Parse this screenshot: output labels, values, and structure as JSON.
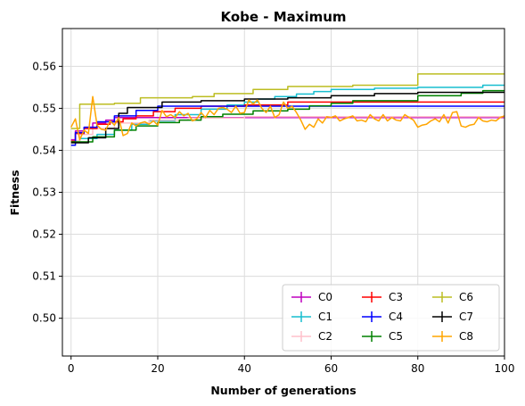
{
  "chart_data": {
    "type": "line",
    "title": "Kobe - Maximum",
    "xlabel": "Number of generations",
    "ylabel": "Fitness",
    "xlim": [
      -2,
      100
    ],
    "ylim": [
      0.491,
      0.569
    ],
    "xticks": [
      0,
      20,
      40,
      60,
      80,
      100
    ],
    "yticks": [
      0.5,
      0.51,
      0.52,
      0.53,
      0.54,
      0.55,
      0.56
    ],
    "ytick_labels": [
      "0.50",
      "0.51",
      "0.52",
      "0.53",
      "0.54",
      "0.55",
      "0.56"
    ],
    "grid": true,
    "legend": {
      "placement": "lower-right",
      "columns": 3
    },
    "series": [
      {
        "name": "C0",
        "color": "#bf00bf",
        "step": true,
        "x": [
          0,
          1,
          3,
          5,
          8,
          10,
          100
        ],
        "y": [
          0.5425,
          0.5446,
          0.5455,
          0.5465,
          0.5472,
          0.5478,
          0.5478
        ]
      },
      {
        "name": "C1",
        "color": "#17becf",
        "step": true,
        "x": [
          0,
          2,
          6,
          10,
          14,
          18,
          24,
          30,
          36,
          40,
          43,
          47,
          52,
          56,
          60,
          70,
          80,
          95,
          100
        ],
        "y": [
          0.5422,
          0.5428,
          0.5438,
          0.5448,
          0.5462,
          0.547,
          0.5485,
          0.5498,
          0.5508,
          0.5515,
          0.5522,
          0.5528,
          0.5534,
          0.554,
          0.5545,
          0.5548,
          0.555,
          0.5555,
          0.5555
        ]
      },
      {
        "name": "C2",
        "color": "#ffc0cb",
        "step": true,
        "x": [
          0,
          2,
          5,
          10,
          18,
          27,
          40,
          100
        ],
        "y": [
          0.5422,
          0.5438,
          0.5452,
          0.5465,
          0.5472,
          0.5477,
          0.548,
          0.548
        ]
      },
      {
        "name": "C3",
        "color": "#ff0000",
        "step": true,
        "x": [
          0,
          1,
          3,
          6,
          9,
          12,
          15,
          19,
          24,
          30,
          40,
          50,
          100
        ],
        "y": [
          0.5422,
          0.544,
          0.5452,
          0.5462,
          0.5468,
          0.5475,
          0.5482,
          0.5492,
          0.55,
          0.5505,
          0.5508,
          0.5515,
          0.5515
        ]
      },
      {
        "name": "C4",
        "color": "#0000ff",
        "step": true,
        "x": [
          0,
          1,
          3,
          6,
          10,
          15,
          20,
          100
        ],
        "y": [
          0.5412,
          0.5442,
          0.5455,
          0.5468,
          0.5482,
          0.5495,
          0.5505,
          0.5505
        ]
      },
      {
        "name": "C5",
        "color": "#008000",
        "step": true,
        "x": [
          0,
          5,
          10,
          15,
          20,
          25,
          30,
          35,
          42,
          50,
          55,
          60,
          65,
          80,
          90,
          95,
          100
        ],
        "y": [
          0.542,
          0.5432,
          0.5448,
          0.5458,
          0.5466,
          0.5472,
          0.548,
          0.5486,
          0.5494,
          0.5498,
          0.5506,
          0.5512,
          0.5518,
          0.553,
          0.5536,
          0.5542,
          0.5542
        ]
      },
      {
        "name": "C6",
        "color": "#bcbd22",
        "step": true,
        "x": [
          0,
          2,
          10,
          16,
          28,
          33,
          42,
          50,
          60,
          65,
          80,
          100
        ],
        "y": [
          0.5452,
          0.551,
          0.5512,
          0.5525,
          0.5528,
          0.5535,
          0.5545,
          0.5552,
          0.5552,
          0.5555,
          0.5582,
          0.5582
        ]
      },
      {
        "name": "C7",
        "color": "#000000",
        "step": true,
        "x": [
          0,
          1,
          4,
          8,
          11,
          13,
          21,
          30,
          40,
          50,
          60,
          70,
          80,
          100
        ],
        "y": [
          0.5418,
          0.5418,
          0.543,
          0.5452,
          0.5488,
          0.5502,
          0.5515,
          0.5518,
          0.5522,
          0.5525,
          0.553,
          0.5535,
          0.5538,
          0.5538
        ]
      },
      {
        "name": "C8",
        "color": "#ffa500",
        "step": false,
        "x": [
          0,
          1,
          2,
          3,
          4,
          5,
          6,
          7,
          8,
          9,
          10,
          11,
          12,
          13,
          14,
          15,
          16,
          17,
          18,
          19,
          20,
          21,
          22,
          23,
          24,
          25,
          26,
          27,
          28,
          29,
          30,
          31,
          32,
          33,
          34,
          35,
          36,
          37,
          38,
          39,
          40,
          41,
          42,
          43,
          44,
          45,
          46,
          47,
          48,
          49,
          50,
          51,
          52,
          53,
          54,
          55,
          56,
          57,
          58,
          59,
          60,
          61,
          62,
          63,
          64,
          65,
          66,
          67,
          68,
          69,
          70,
          71,
          72,
          73,
          74,
          75,
          76,
          77,
          78,
          79,
          80,
          81,
          82,
          83,
          84,
          85,
          86,
          87,
          88,
          89,
          90,
          91,
          92,
          93,
          94,
          95,
          96,
          97,
          98,
          99,
          100
        ],
        "y": [
          0.5455,
          0.5475,
          0.5425,
          0.5448,
          0.544,
          0.5528,
          0.546,
          0.545,
          0.5448,
          0.547,
          0.546,
          0.5478,
          0.5435,
          0.544,
          0.5465,
          0.5458,
          0.5465,
          0.5468,
          0.5462,
          0.547,
          0.546,
          0.5495,
          0.548,
          0.5485,
          0.5478,
          0.5492,
          0.5482,
          0.5488,
          0.547,
          0.5475,
          0.549,
          0.5478,
          0.5495,
          0.5485,
          0.55,
          0.5502,
          0.5498,
          0.549,
          0.5505,
          0.5488,
          0.549,
          0.552,
          0.551,
          0.552,
          0.55,
          0.549,
          0.5505,
          0.5478,
          0.5485,
          0.5515,
          0.55,
          0.5505,
          0.549,
          0.5472,
          0.545,
          0.5462,
          0.5455,
          0.5475,
          0.5465,
          0.548,
          0.5478,
          0.5482,
          0.547,
          0.5475,
          0.5478,
          0.5482,
          0.547,
          0.5472,
          0.5468,
          0.5485,
          0.5475,
          0.547,
          0.5485,
          0.547,
          0.5478,
          0.5472,
          0.547,
          0.5485,
          0.5478,
          0.5472,
          0.5455,
          0.546,
          0.5462,
          0.547,
          0.5475,
          0.5468,
          0.5485,
          0.5465,
          0.549,
          0.5492,
          0.5458,
          0.5455,
          0.546,
          0.5462,
          0.5478,
          0.547,
          0.5468,
          0.5472,
          0.547,
          0.5478,
          0.5482
        ]
      }
    ]
  }
}
